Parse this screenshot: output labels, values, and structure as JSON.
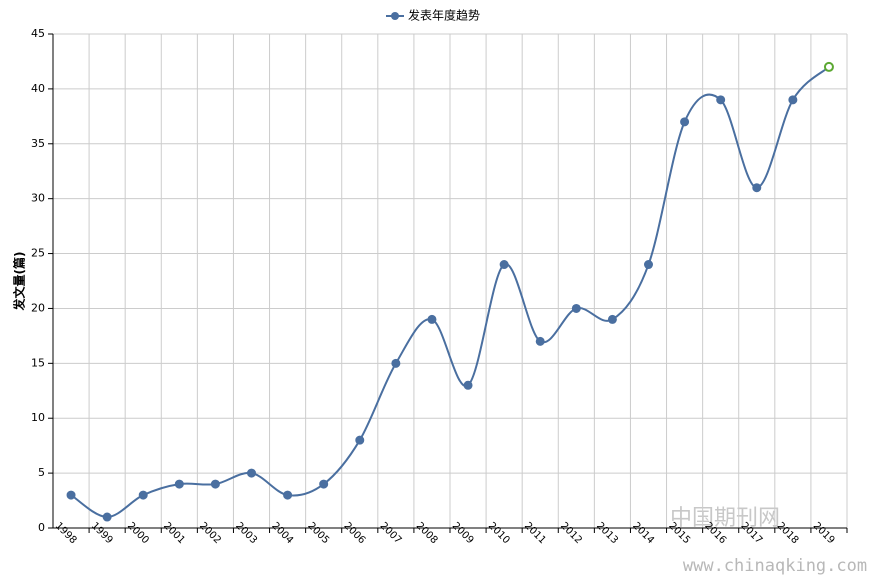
{
  "chart_data": {
    "type": "line",
    "series": [
      {
        "name": "发表年度趋势",
        "color": "#4a6fa0",
        "values": [
          3,
          1,
          3,
          4,
          4,
          5,
          3,
          4,
          8,
          15,
          19,
          13,
          24,
          17,
          20,
          19,
          24,
          37,
          39,
          31,
          39,
          42
        ]
      }
    ],
    "categories": [
      "1998",
      "1999",
      "2000",
      "2001",
      "2002",
      "2003",
      "2004",
      "2005",
      "2006",
      "2007",
      "2008",
      "2009",
      "2010",
      "2011",
      "2012",
      "2013",
      "2014",
      "2015",
      "2016",
      "2017",
      "2018",
      "2019"
    ],
    "ylabel": "发文量(篇)",
    "ylim": [
      0,
      45
    ],
    "yticks": [
      0,
      5,
      10,
      15,
      20,
      25,
      30,
      35,
      40,
      45
    ],
    "grid": true,
    "smooth": true,
    "legend": "top",
    "last_point_color": "#5ca832",
    "watermark": [
      "中国期刊网",
      "www.chinaqking.com"
    ]
  }
}
